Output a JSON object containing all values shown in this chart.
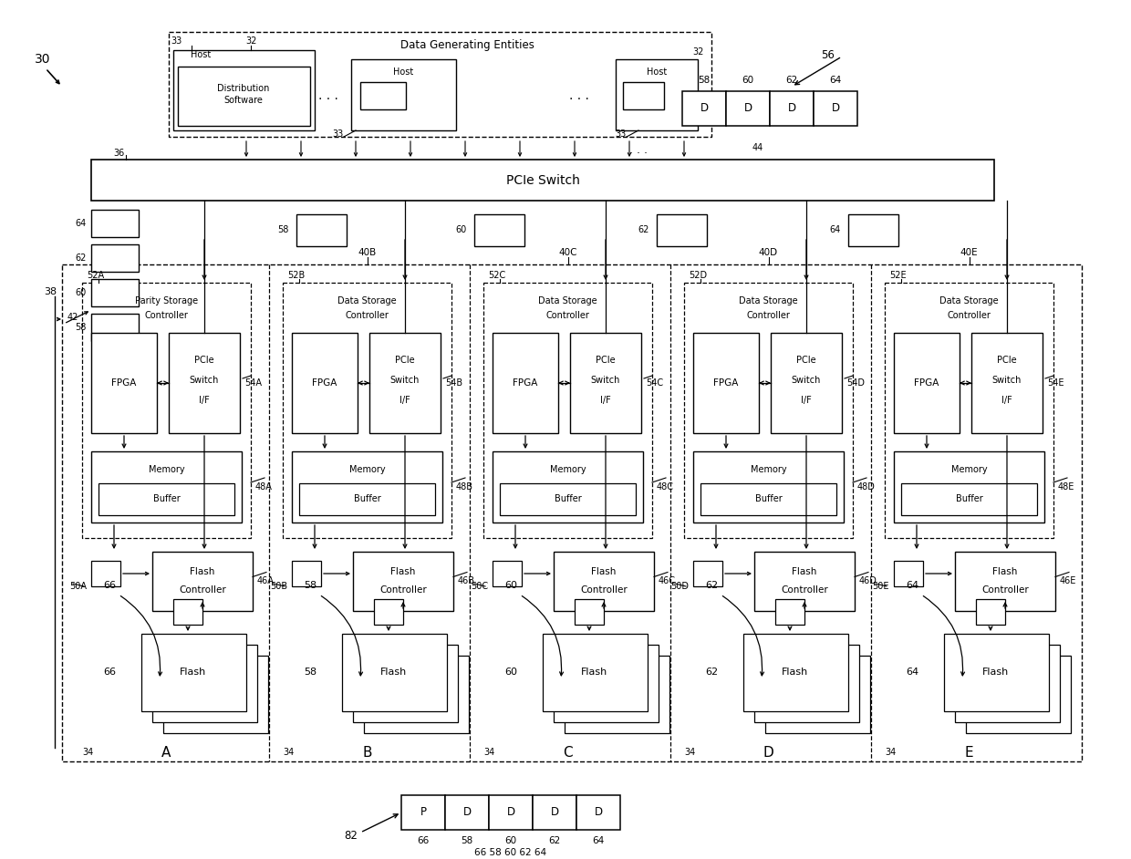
{
  "bg": "#ffffff",
  "lc": "#000000",
  "controllers": [
    {
      "id": "A",
      "type1": "Parity Storage",
      "type2": "Controller",
      "inner_ref": "52A",
      "pcie_ref": "54A",
      "mem_ref": "48A",
      "fc_ref": "46A",
      "sb_ref": "50A",
      "flash_id": "66",
      "outer_ref": ""
    },
    {
      "id": "B",
      "type1": "Data Storage",
      "type2": "Controller",
      "inner_ref": "52B",
      "pcie_ref": "54B",
      "mem_ref": "48B",
      "fc_ref": "46B",
      "sb_ref": "50B",
      "flash_id": "58",
      "outer_ref": "40B"
    },
    {
      "id": "C",
      "type1": "Data Storage",
      "type2": "Controller",
      "inner_ref": "52C",
      "pcie_ref": "54C",
      "mem_ref": "48C",
      "fc_ref": "46C",
      "sb_ref": "50C",
      "flash_id": "60",
      "outer_ref": "40C"
    },
    {
      "id": "D",
      "type1": "Data Storage",
      "type2": "Controller",
      "inner_ref": "52D",
      "pcie_ref": "54D",
      "mem_ref": "48D",
      "fc_ref": "46D",
      "sb_ref": "50D",
      "flash_id": "62",
      "outer_ref": "40D"
    },
    {
      "id": "E",
      "type1": "Data Storage",
      "type2": "Controller",
      "inner_ref": "52E",
      "pcie_ref": "54E",
      "mem_ref": "48E",
      "fc_ref": "46E",
      "sb_ref": "50E",
      "flash_id": "64",
      "outer_ref": "40E"
    }
  ]
}
